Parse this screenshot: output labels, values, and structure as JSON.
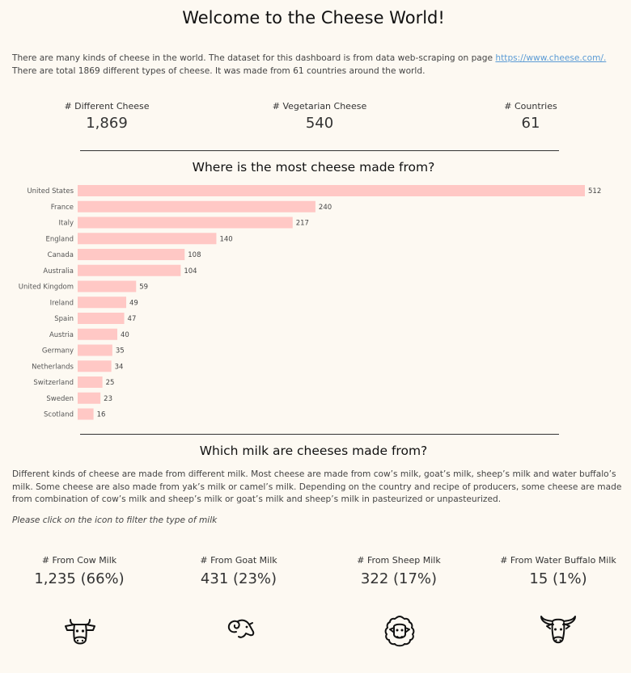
{
  "title": "Welcome to the Cheese World!",
  "intro": {
    "before": "There are many kinds of cheese in the world. The dataset for this dashboard is from data web-scraping on page ",
    "link": "https://www.cheese.com/.",
    "after": " There are total 1869 different types of cheese. It was made from 61 countries around the world."
  },
  "kpis": {
    "different": {
      "label": "# Different Cheese",
      "value": "1,869"
    },
    "vegetarian": {
      "label": "# Vegetarian Cheese",
      "value": "540"
    },
    "countries": {
      "label": "# Countries",
      "value": "61"
    }
  },
  "country_section_title": "Where is the most cheese made from?",
  "chart_data": {
    "type": "bar",
    "orientation": "horizontal",
    "title": "Where is the most cheese made from?",
    "categories": [
      "United States",
      "France",
      "Italy",
      "England",
      "Canada",
      "Australia",
      "United Kingdom",
      "Ireland",
      "Spain",
      "Austria",
      "Germany",
      "Netherlands",
      "Switzerland",
      "Sweden",
      "Scotland"
    ],
    "values": [
      512,
      240,
      217,
      140,
      108,
      104,
      59,
      49,
      47,
      40,
      35,
      34,
      25,
      23,
      16
    ],
    "bar_color": "#ffc8c5",
    "grid": false,
    "legend": "none"
  },
  "milk_section_title": "Which milk are cheeses made from?",
  "milk_description": "Different kinds of cheese are made from different milk. Most cheese are made from cow’s milk, goat’s milk, sheep’s milk and water buffalo’s milk. Some cheese are also made from yak’s milk or camel’s milk. Depending on the country and recipe of producers, some cheese are made from combination of cow’s milk and sheep’s milk or goat’s milk and sheep’s milk in pasteurized or unpasteurized.",
  "click_note": "Please click on the icon to filter the type of milk",
  "milk": {
    "cow": {
      "label": "# From Cow Milk",
      "value": "1,235 (66%)",
      "icon": "cow-icon"
    },
    "goat": {
      "label": "# From Goat Milk",
      "value": "431 (23%)",
      "icon": "goat-icon"
    },
    "sheep": {
      "label": "# From Sheep Milk",
      "value": "322 (17%)",
      "icon": "sheep-icon"
    },
    "buffalo": {
      "label": "# From Water Buffalo Milk",
      "value": "15 (1%)",
      "icon": "water-buffalo-icon"
    }
  }
}
